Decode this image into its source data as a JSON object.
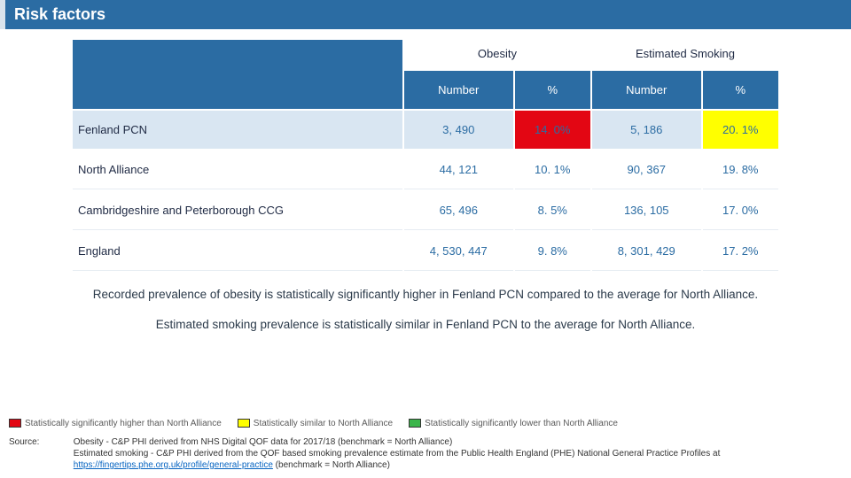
{
  "title": "Risk factors",
  "colors": {
    "header_bg": "#2b6ca3",
    "header_fg": "#ffffff",
    "row_highlight_bg": "#d9e6f2",
    "hl_red": "#e30613",
    "hl_yellow": "#ffff00",
    "hl_green": "#3bb54a",
    "link": "#0563c1",
    "text": "#1f2a44"
  },
  "table": {
    "group_headers": [
      "Obesity",
      "Estimated Smoking"
    ],
    "sub_headers": [
      "Number",
      "%",
      "Number",
      "%"
    ],
    "rows": [
      {
        "label": "Fenland PCN",
        "cells": [
          "3, 490",
          "14. 0%",
          "5, 186",
          "20. 1%"
        ],
        "highlight_row": true,
        "cell_flags": [
          null,
          "red",
          null,
          "yellow"
        ]
      },
      {
        "label": "North Alliance",
        "cells": [
          "44, 121",
          "10. 1%",
          "90, 367",
          "19. 8%"
        ],
        "highlight_row": false,
        "cell_flags": [
          null,
          null,
          null,
          null
        ]
      },
      {
        "label": "Cambridgeshire and Peterborough CCG",
        "cells": [
          "65, 496",
          "8. 5%",
          "136, 105",
          "17. 0%"
        ],
        "highlight_row": false,
        "cell_flags": [
          null,
          null,
          null,
          null
        ]
      },
      {
        "label": "England",
        "cells": [
          "4, 530, 447",
          "9. 8%",
          "8, 301, 429",
          "17. 2%"
        ],
        "highlight_row": false,
        "cell_flags": [
          null,
          null,
          null,
          null
        ]
      }
    ]
  },
  "commentary": {
    "line1": "Recorded prevalence of obesity is statistically significantly higher in Fenland PCN compared to the average for North Alliance.",
    "line2": "Estimated smoking prevalence is statistically similar in Fenland PCN to the average for North Alliance."
  },
  "legend": {
    "items": [
      {
        "color": "#e30613",
        "label": "Statistically significantly higher than North Alliance"
      },
      {
        "color": "#ffff00",
        "label": "Statistically similar to North Alliance"
      },
      {
        "color": "#3bb54a",
        "label": "Statistically significantly lower than North Alliance"
      }
    ]
  },
  "source": {
    "label": "Source:",
    "line1_a": "Obesity - C&P PHI derived from NHS Digital QOF data for 2017/18 (benchmark = North Alliance)",
    "line2_a": "Estimated smoking - C&P PHI derived from the QOF based smoking prevalence estimate from the Public Health England (PHE) National General Practice Profiles at ",
    "link_text": "https://fingertips.phe.org.uk/profile/general-practice",
    "line2_b": " (benchmark = North Alliance)"
  }
}
